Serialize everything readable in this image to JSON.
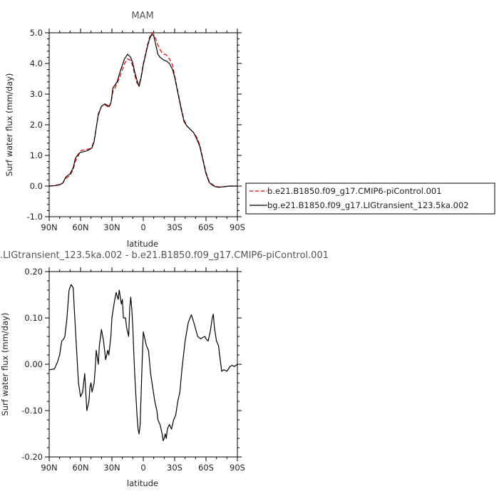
{
  "chart_data": [
    {
      "type": "line",
      "title": "MAM",
      "xlabel": "latitude",
      "ylabel": "Surf water flux (mm/day)",
      "xlim": [
        90,
        -90
      ],
      "ylim": [
        -1.0,
        5.0
      ],
      "xticks": [
        90,
        60,
        30,
        0,
        -30,
        -60,
        -90
      ],
      "xtick_labels": [
        "90N",
        "60N",
        "30N",
        "0",
        "30S",
        "60S",
        "90S"
      ],
      "yticks": [
        -1.0,
        0.0,
        1.0,
        2.0,
        3.0,
        4.0,
        5.0
      ],
      "ytick_labels": [
        "-1.0",
        "0.0",
        "1.0",
        "2.0",
        "3.0",
        "4.0",
        "5.0"
      ],
      "legend_position": "right",
      "series": [
        {
          "name": "b.e21.B1850.f09_g17.CMIP6-piControl.001",
          "color": "#dd0000",
          "dash": "dashed",
          "x": [
            90,
            85,
            80,
            77,
            74,
            72,
            70,
            67,
            65,
            62,
            60,
            57,
            54,
            51,
            49,
            47,
            45,
            43,
            40,
            37,
            35,
            33,
            31,
            29,
            27,
            25,
            22,
            20,
            18,
            15,
            12,
            10,
            8,
            6,
            4,
            2,
            0,
            -2,
            -4,
            -6,
            -8,
            -10,
            -12,
            -14,
            -16,
            -18,
            -20,
            -22,
            -25,
            -28,
            -30,
            -33,
            -36,
            -39,
            -42,
            -45,
            -48,
            -51,
            -54,
            -57,
            -60,
            -63,
            -66,
            -69,
            -72,
            -75,
            -78,
            -80,
            -83,
            -86,
            -90
          ],
          "y": [
            0.0,
            0.02,
            0.05,
            0.1,
            0.25,
            0.3,
            0.35,
            0.55,
            0.8,
            1.0,
            1.15,
            1.18,
            1.2,
            1.22,
            1.3,
            1.5,
            1.9,
            2.3,
            2.6,
            2.65,
            2.62,
            2.55,
            2.7,
            3.1,
            3.2,
            3.35,
            3.6,
            3.8,
            4.0,
            4.15,
            4.1,
            3.9,
            3.6,
            3.35,
            3.3,
            3.6,
            4.0,
            4.3,
            4.6,
            4.85,
            5.0,
            4.95,
            4.8,
            4.6,
            4.45,
            4.35,
            4.3,
            4.28,
            4.15,
            3.95,
            3.6,
            3.1,
            2.6,
            2.15,
            1.95,
            1.85,
            1.75,
            1.6,
            1.35,
            0.9,
            0.45,
            0.15,
            0.05,
            0.0,
            -0.03,
            -0.02,
            -0.02,
            0.0,
            0.0,
            0.0,
            0.0
          ]
        },
        {
          "name": "bg.e21.B1850.f09_g17.LIGtransient_123.5ka.002",
          "color": "#000000",
          "dash": "solid",
          "x": [
            90,
            85,
            80,
            77,
            74,
            72,
            70,
            67,
            65,
            62,
            60,
            57,
            54,
            51,
            49,
            47,
            45,
            43,
            40,
            37,
            35,
            33,
            31,
            29,
            27,
            25,
            22,
            20,
            18,
            15,
            12,
            10,
            8,
            6,
            4,
            2,
            0,
            -2,
            -4,
            -6,
            -8,
            -10,
            -12,
            -14,
            -16,
            -18,
            -20,
            -22,
            -25,
            -28,
            -30,
            -33,
            -36,
            -39,
            -42,
            -45,
            -48,
            -51,
            -54,
            -57,
            -60,
            -63,
            -66,
            -69,
            -72,
            -75,
            -78,
            -80,
            -83,
            -86,
            -90
          ],
          "y": [
            0.0,
            0.01,
            0.04,
            0.1,
            0.3,
            0.35,
            0.4,
            0.6,
            0.9,
            1.05,
            1.1,
            1.12,
            1.15,
            1.2,
            1.25,
            1.45,
            1.9,
            2.35,
            2.6,
            2.68,
            2.65,
            2.6,
            2.7,
            3.2,
            3.3,
            3.4,
            3.75,
            3.95,
            4.15,
            4.3,
            4.2,
            4.0,
            3.7,
            3.45,
            3.25,
            3.55,
            3.95,
            4.25,
            4.55,
            4.8,
            4.95,
            4.9,
            4.6,
            4.3,
            4.2,
            4.15,
            4.1,
            4.08,
            4.0,
            3.8,
            3.55,
            3.05,
            2.55,
            2.1,
            1.95,
            1.85,
            1.75,
            1.55,
            1.3,
            0.85,
            0.4,
            0.12,
            0.03,
            -0.02,
            -0.04,
            -0.03,
            -0.02,
            -0.01,
            0.0,
            0.0,
            0.0
          ]
        }
      ]
    },
    {
      "type": "line",
      "title": ".LIGtransient_123.5ka.002 - b.e21.B1850.f09_g17.CMIP6-piControl.001",
      "xlabel": "latitude",
      "ylabel": "Surf water flux (mm/day)",
      "xlim": [
        90,
        -90
      ],
      "ylim": [
        -0.2,
        0.2
      ],
      "xticks": [
        90,
        60,
        30,
        0,
        -30,
        -60,
        -90
      ],
      "xtick_labels": [
        "90N",
        "60N",
        "30N",
        "0",
        "30S",
        "60S",
        "90S"
      ],
      "yticks": [
        -0.2,
        -0.1,
        0.0,
        0.1,
        0.2
      ],
      "ytick_labels": [
        "-0.20",
        "-0.10",
        "0.00",
        "0.10",
        "0.20"
      ],
      "series": [
        {
          "color": "#000000",
          "dash": "solid",
          "x": [
            90,
            85,
            83,
            82,
            80,
            78,
            76,
            75,
            73,
            71,
            69,
            67,
            66,
            64,
            62,
            60,
            58,
            57,
            56,
            55,
            54,
            52,
            51,
            50,
            49,
            47,
            46,
            45,
            43,
            42,
            40,
            38,
            36,
            34,
            33,
            31,
            30,
            28,
            26,
            24,
            23,
            21,
            20,
            19,
            17,
            16,
            14,
            13,
            12,
            11,
            10,
            9,
            8,
            7,
            6,
            5,
            4,
            3,
            2,
            1,
            0,
            -1,
            -2,
            -3,
            -5,
            -7,
            -9,
            -11,
            -13,
            -14,
            -16,
            -18,
            -19,
            -20,
            -21,
            -22,
            -23,
            -25,
            -27,
            -29,
            -31,
            -33,
            -35,
            -37,
            -40,
            -43,
            -46,
            -49,
            -52,
            -55,
            -57,
            -59,
            -60,
            -62,
            -64,
            -66,
            -67,
            -68,
            -70,
            -72,
            -73,
            -75,
            -77,
            -80,
            -83,
            -85,
            -87,
            -90
          ],
          "y": [
            -0.012,
            -0.01,
            0.0,
            0.005,
            0.02,
            0.05,
            0.055,
            0.06,
            0.1,
            0.16,
            0.172,
            0.165,
            0.12,
            0.04,
            -0.04,
            -0.07,
            -0.06,
            -0.04,
            -0.02,
            -0.06,
            -0.1,
            -0.08,
            -0.05,
            -0.04,
            -0.06,
            -0.04,
            -0.01,
            0.03,
            0.0,
            0.04,
            0.075,
            0.05,
            0.01,
            0.03,
            0.02,
            0.06,
            0.1,
            0.13,
            0.155,
            0.14,
            0.16,
            0.13,
            0.14,
            0.1,
            0.1,
            0.08,
            0.06,
            0.12,
            0.145,
            0.12,
            0.08,
            0.02,
            -0.03,
            -0.07,
            -0.11,
            -0.14,
            -0.15,
            -0.13,
            -0.06,
            0.01,
            0.07,
            0.06,
            0.05,
            0.04,
            0.03,
            -0.02,
            -0.05,
            -0.08,
            -0.1,
            -0.12,
            -0.13,
            -0.15,
            -0.165,
            -0.16,
            -0.15,
            -0.16,
            -0.14,
            -0.13,
            -0.14,
            -0.12,
            -0.11,
            -0.08,
            -0.06,
            -0.01,
            0.05,
            0.09,
            0.107,
            0.085,
            0.06,
            0.055,
            0.058,
            0.06,
            0.055,
            0.05,
            0.07,
            0.1,
            0.108,
            0.08,
            0.05,
            0.04,
            0.02,
            -0.015,
            -0.012,
            -0.015,
            -0.005,
            -0.002,
            -0.005,
            0.0
          ]
        }
      ]
    }
  ]
}
